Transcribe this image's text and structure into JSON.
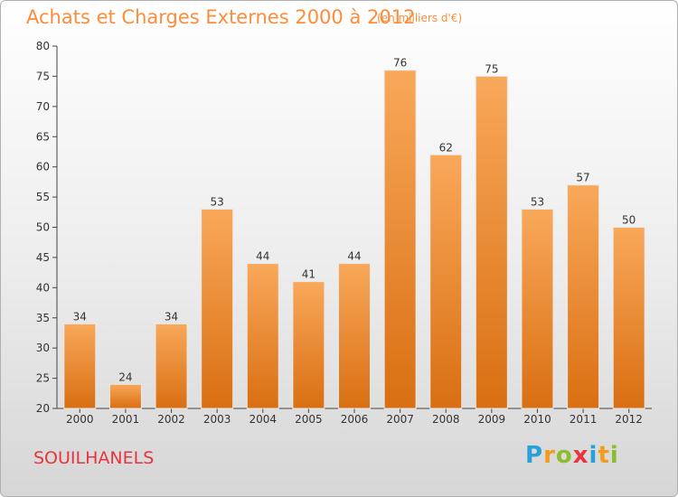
{
  "header": {
    "title": "Achats et Charges Externes 2000 à 2012",
    "subtitle": "(en milliers d'€)"
  },
  "footer": {
    "commune": "SOUILHANELS",
    "brand_letters": [
      "P",
      "r",
      "o",
      "x",
      "i",
      "t",
      "i"
    ],
    "brand_colors": [
      "#2aa0d8",
      "#f39b1c",
      "#8bbd2e",
      "#e8343f",
      "#2aa0d8",
      "#f39b1c",
      "#8bbd2e"
    ]
  },
  "chart_data": {
    "type": "bar",
    "categories": [
      "2000",
      "2001",
      "2002",
      "2003",
      "2004",
      "2005",
      "2006",
      "2007",
      "2008",
      "2009",
      "2010",
      "2011",
      "2012"
    ],
    "values": [
      34,
      24,
      34,
      53,
      44,
      41,
      44,
      76,
      62,
      75,
      53,
      57,
      50
    ],
    "title": "Achats et Charges Externes 2000 à 2012",
    "subtitle": "(en milliers d'€)",
    "ylim": [
      20,
      80
    ],
    "yticks": [
      20,
      25,
      30,
      35,
      40,
      45,
      50,
      55,
      60,
      65,
      70,
      75,
      80
    ],
    "grid": false,
    "bar_color_top": "#f9a85a",
    "bar_color_bottom": "#d96f12"
  }
}
